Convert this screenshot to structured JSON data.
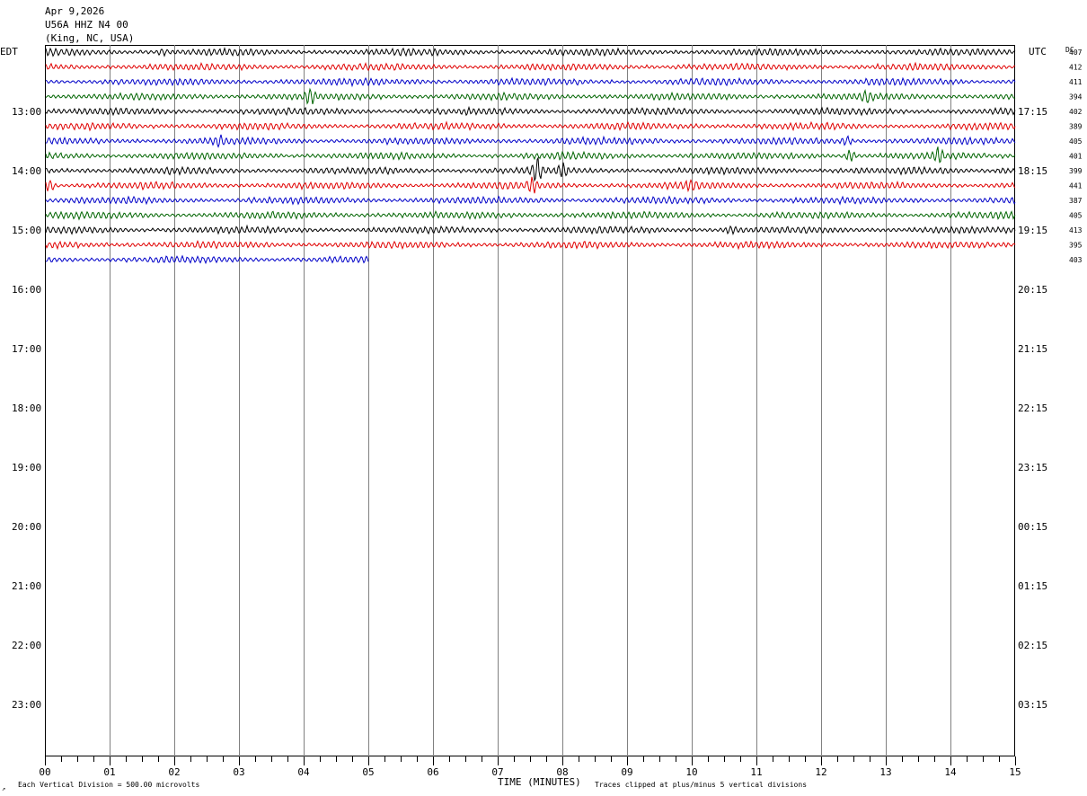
{
  "header": {
    "date": "Apr 9,2026",
    "station": "U56A HHZ N4 00",
    "location": "(King, NC, USA)"
  },
  "labels": {
    "left_tz": "EDT",
    "right_tz": "UTC",
    "dc": "DC",
    "x_axis": "TIME (MINUTES)",
    "scale_note": "Each Vertical Division =  500.00 microvolts",
    "clip_note": "Traces clipped at plus/minus 5 vertical divisions",
    "corner_mark": "↗"
  },
  "chart_data": {
    "type": "line",
    "title": "Apr 9,2026",
    "xlabel": "TIME (MINUTES)",
    "x_ticks": [
      "00",
      "01",
      "02",
      "03",
      "04",
      "05",
      "06",
      "07",
      "08",
      "09",
      "10",
      "11",
      "12",
      "13",
      "14",
      "15"
    ],
    "xlim": [
      0,
      15
    ],
    "edt_ticks": [
      "13:00",
      "14:00",
      "15:00",
      "16:00",
      "17:00",
      "18:00",
      "19:00",
      "20:00",
      "21:00",
      "22:00",
      "23:00"
    ],
    "utc_ticks": [
      "17:15",
      "18:15",
      "19:15",
      "20:15",
      "21:15",
      "22:15",
      "23:15",
      "00:15",
      "01:15",
      "02:15",
      "03:15"
    ],
    "trace_colors": [
      "#000000",
      "#e00000",
      "#0000c8",
      "#006400"
    ],
    "traces": [
      {
        "dc": "407",
        "end_minute": 15,
        "events": [
          {
            "t": 1.8,
            "amp": 1.6
          }
        ]
      },
      {
        "dc": "412",
        "end_minute": 15,
        "events": []
      },
      {
        "dc": "411",
        "end_minute": 15,
        "events": []
      },
      {
        "dc": "394",
        "end_minute": 15,
        "events": [
          {
            "t": 4.1,
            "amp": 2.4
          },
          {
            "t": 12.7,
            "amp": 1.3
          }
        ]
      },
      {
        "dc": "402",
        "end_minute": 15,
        "events": []
      },
      {
        "dc": "389",
        "end_minute": 15,
        "events": []
      },
      {
        "dc": "405",
        "end_minute": 15,
        "events": [
          {
            "t": 2.7,
            "amp": 1.3
          },
          {
            "t": 12.4,
            "amp": 2.0
          }
        ]
      },
      {
        "dc": "401",
        "end_minute": 15,
        "events": [
          {
            "t": 12.45,
            "amp": 3.5
          },
          {
            "t": 13.8,
            "amp": 2.0
          }
        ]
      },
      {
        "dc": "399",
        "end_minute": 15,
        "events": [
          {
            "t": 7.6,
            "amp": 3.5
          },
          {
            "t": 8.0,
            "amp": 2.0
          },
          {
            "t": 14.8,
            "amp": 2.0
          }
        ]
      },
      {
        "dc": "441",
        "end_minute": 15,
        "events": [
          {
            "t": 0.05,
            "amp": 4.0
          },
          {
            "t": 7.55,
            "amp": 1.8
          },
          {
            "t": 10.0,
            "amp": 1.4
          }
        ]
      },
      {
        "dc": "387",
        "end_minute": 15,
        "events": []
      },
      {
        "dc": "405",
        "end_minute": 15,
        "events": []
      },
      {
        "dc": "413",
        "end_minute": 15,
        "events": [
          {
            "t": 10.6,
            "amp": 1.6
          }
        ]
      },
      {
        "dc": "395",
        "end_minute": 15,
        "events": []
      },
      {
        "dc": "403",
        "end_minute": 5,
        "events": []
      }
    ]
  }
}
